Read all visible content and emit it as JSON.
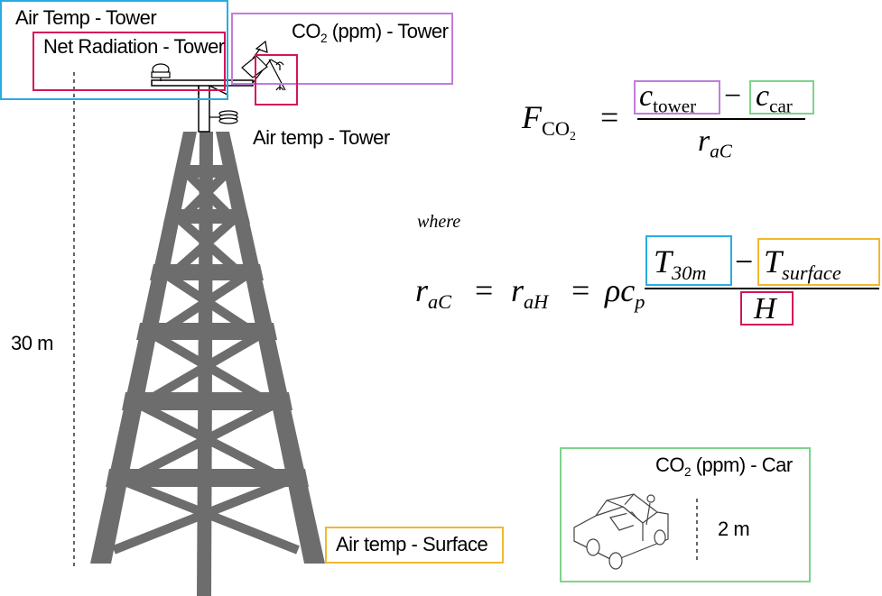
{
  "labels": {
    "air_temp_tower_top": "Air Temp - Tower",
    "net_radiation_tower": "Net Radiation - Tower",
    "co2_tower_prefix": "CO",
    "co2_tower_sub": "2",
    "co2_tower_suffix": " (ppm) - Tower",
    "air_temp_tower_mid": "Air temp - Tower",
    "height_30m": "30 m",
    "air_temp_surface": "Air temp -  Surface",
    "co2_car_prefix": "CO",
    "co2_car_sub": "2",
    "co2_car_suffix": " (ppm) - Car",
    "height_2m": "2 m"
  },
  "equations": {
    "flux_lhs": "F",
    "flux_lhs_sub": "CO",
    "flux_lhs_sub2": "2",
    "equals": "=",
    "c_tower": "c",
    "c_tower_sub": "tower",
    "minus": "−",
    "c_car": "c",
    "c_car_sub": "car",
    "r_ac": "r",
    "r_ac_sub": "aC",
    "where": "where",
    "r_ac2": "r",
    "r_ac2_sub": "aC",
    "r_ah": "r",
    "r_ah_sub": "aH",
    "rho_cp": "ρc",
    "rho_cp_sub": "p",
    "t_30m": "T",
    "t_30m_sub": "30m",
    "t_surface": "T",
    "t_surface_sub": "surface",
    "h": "H"
  },
  "colors": {
    "blue": "#29abe2",
    "crimson": "#d4145a",
    "purple": "#c07ddb",
    "green": "#7ed38a",
    "yellow": "#f2b82e",
    "tower_gray": "#6d6d6d"
  }
}
